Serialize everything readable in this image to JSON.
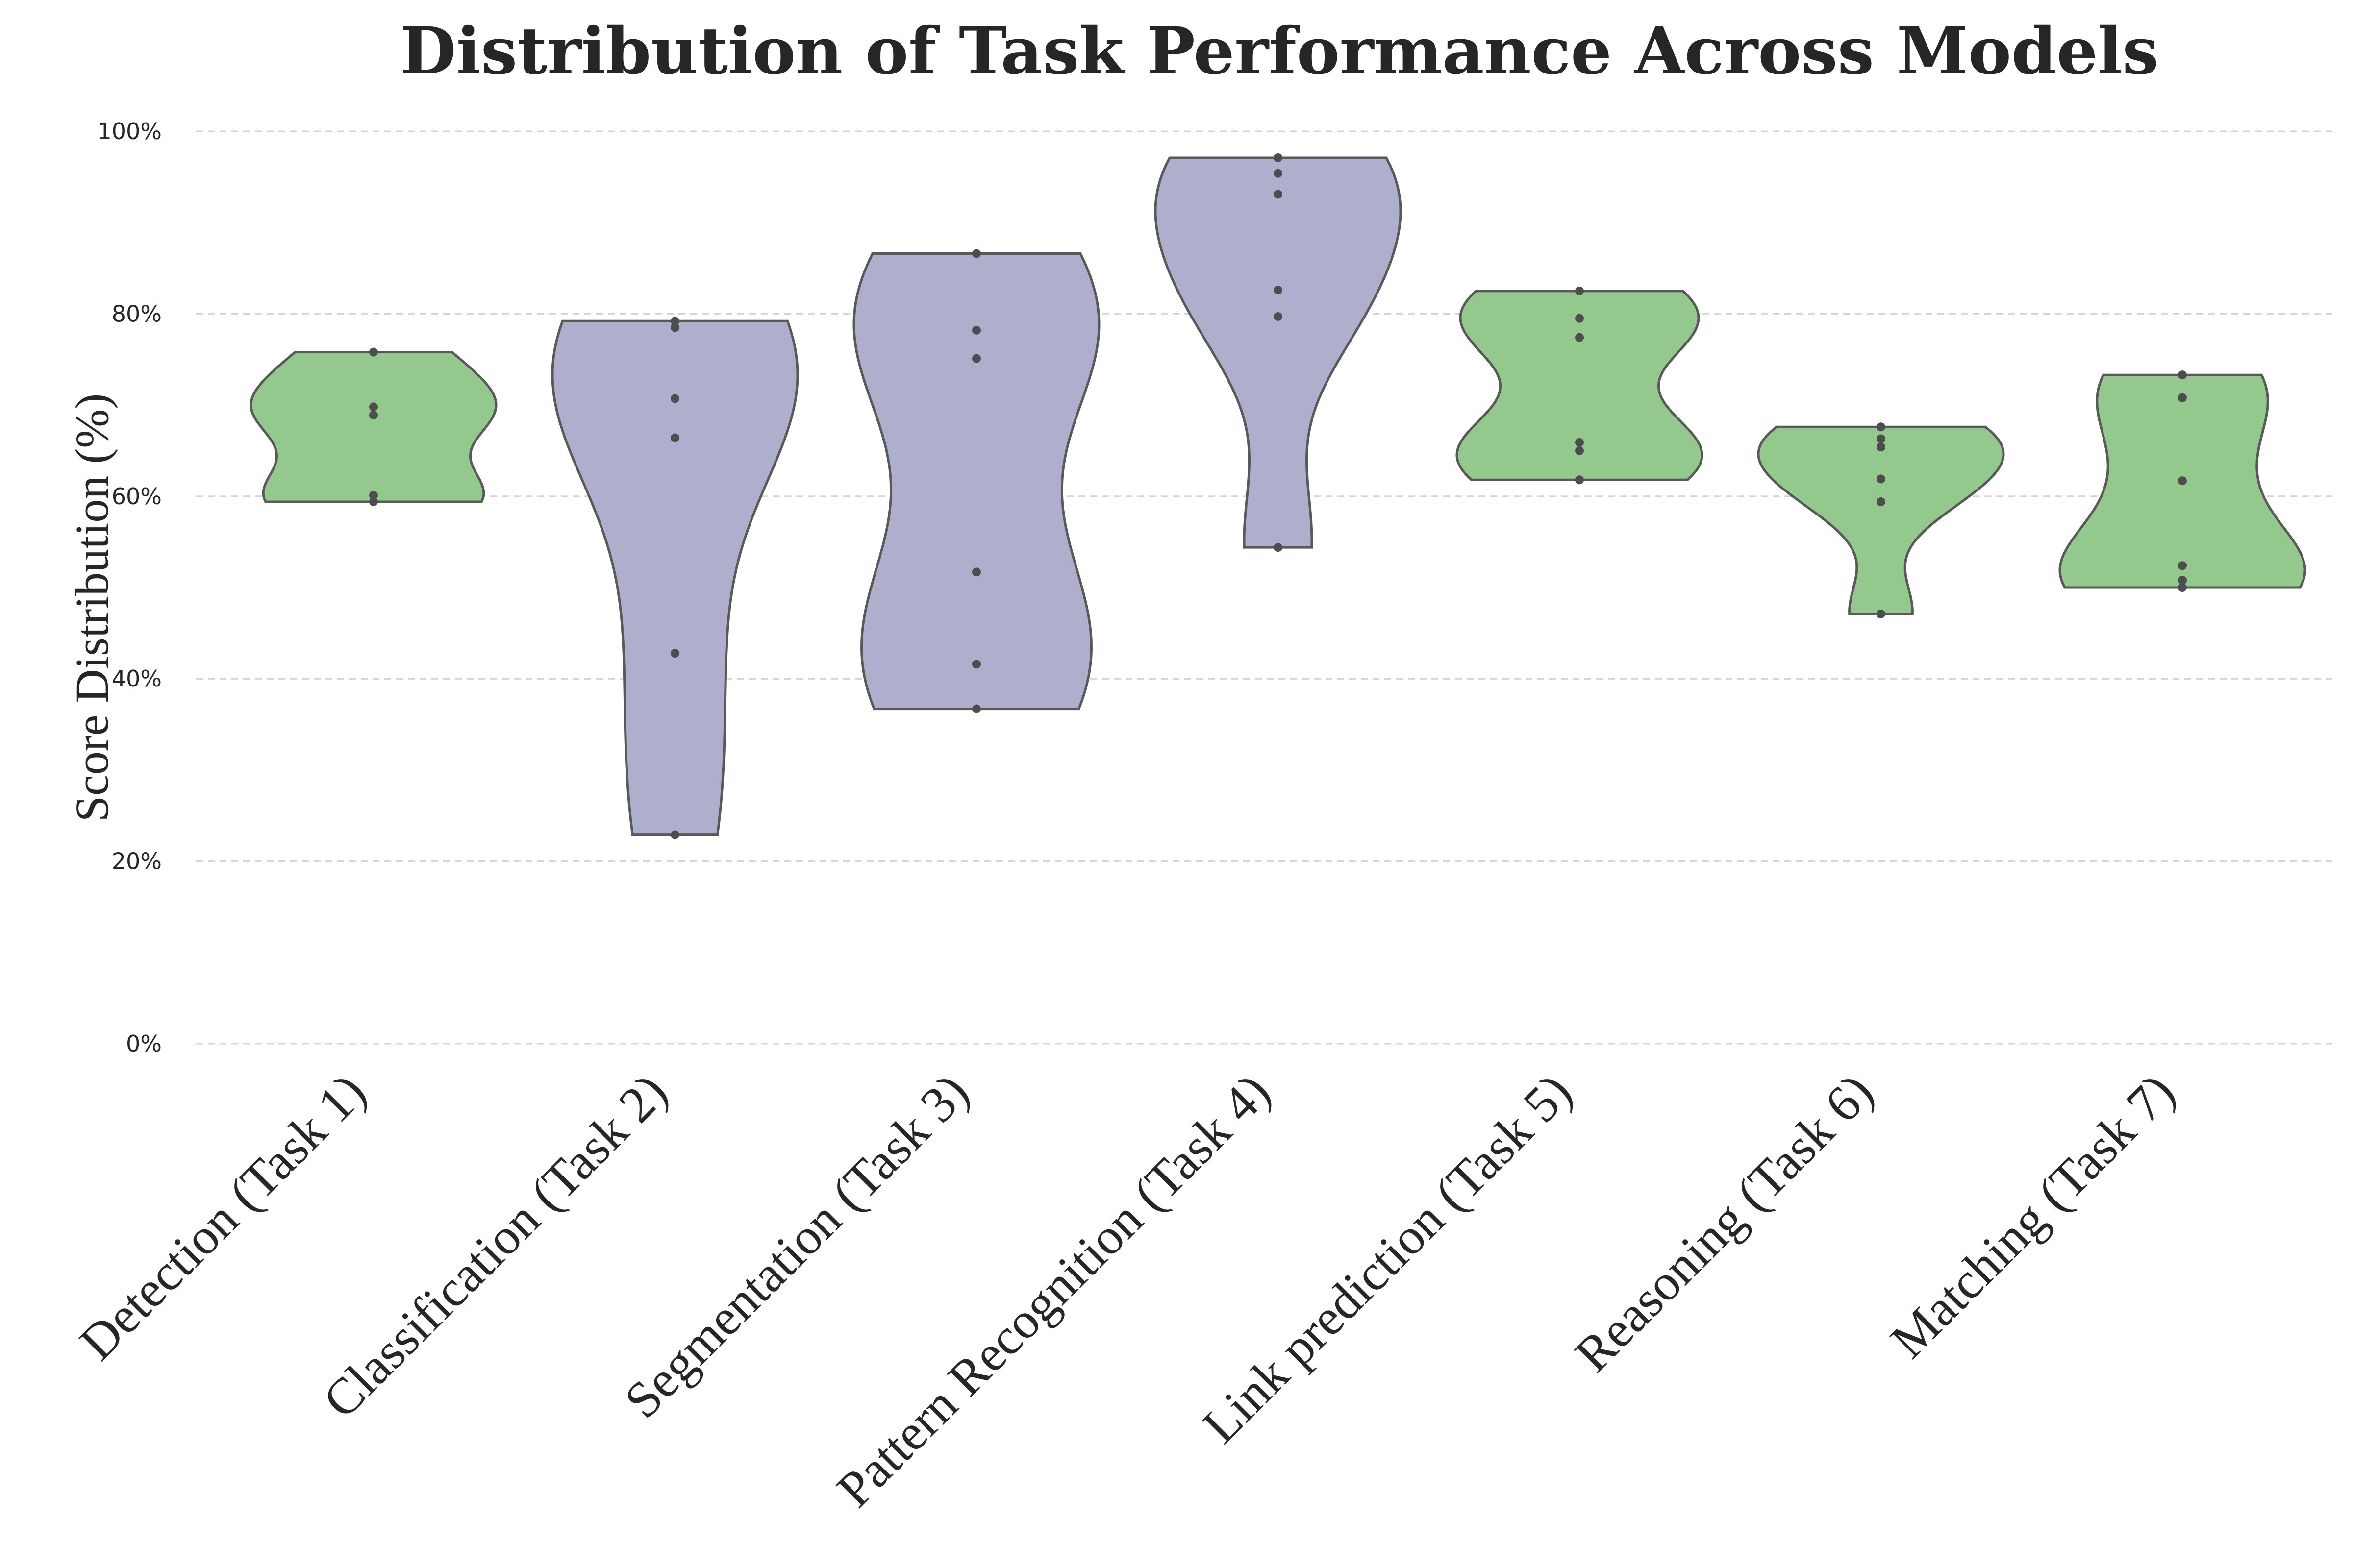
{
  "chart_data": {
    "type": "violin",
    "title": "Distribution of Task Performance Across Models",
    "xlabel": "",
    "ylabel": "Score Distribution (%)",
    "ylim": [
      0,
      100
    ],
    "yticks": [
      0,
      20,
      40,
      60,
      80,
      100
    ],
    "ytick_labels": [
      "0%",
      "20%",
      "40%",
      "60%",
      "80%",
      "100%"
    ],
    "grid": "y-dashed",
    "colors": {
      "green": "#93c98c",
      "purple": "#aeaecd",
      "outline": "#595959",
      "points": "#4d4d4d"
    },
    "categories": [
      "Detection (Task 1)",
      "Classification (Task 2)",
      "Segmentation (Task 3)",
      "Pattern Recognition (Task 4)",
      "Link prediction (Task 5)",
      "Reasoning (Task 6)",
      "Matching (Task 7)"
    ],
    "category_colors": [
      "green",
      "purple",
      "purple",
      "purple",
      "green",
      "green",
      "green"
    ],
    "series": [
      {
        "values": [
          75.8,
          69.8,
          68.9,
          60.1,
          59.4
        ]
      },
      {
        "values": [
          79.2,
          78.5,
          70.7,
          66.4,
          42.8,
          22.9
        ]
      },
      {
        "values": [
          86.6,
          78.2,
          75.1,
          51.7,
          41.6,
          36.7
        ]
      },
      {
        "values": [
          97.1,
          95.4,
          93.1,
          82.6,
          79.7,
          54.4
        ]
      },
      {
        "values": [
          82.5,
          79.5,
          77.4,
          65.9,
          65.0,
          61.8
        ]
      },
      {
        "values": [
          67.6,
          66.3,
          65.4,
          61.9,
          59.4,
          47.1
        ]
      },
      {
        "values": [
          73.3,
          70.8,
          61.7,
          52.4,
          50.8,
          50.0
        ]
      }
    ]
  }
}
